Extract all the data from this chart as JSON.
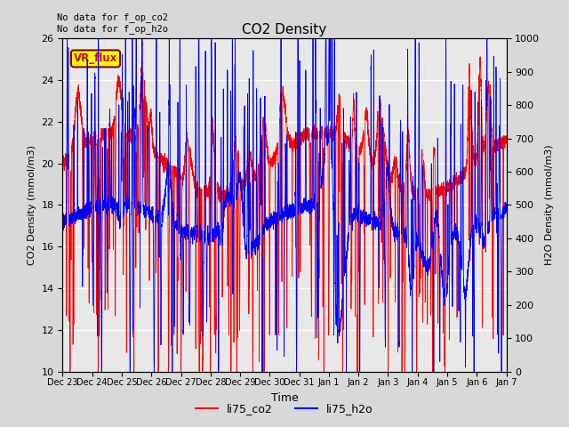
{
  "title": "CO2 Density",
  "xlabel": "Time",
  "ylabel_left": "CO2 Density (mmol/m3)",
  "ylabel_right": "H2O Density (mmol/m3)",
  "ylim_left": [
    10,
    26
  ],
  "ylim_right": [
    0,
    1000
  ],
  "yticks_left": [
    10,
    12,
    14,
    16,
    18,
    20,
    22,
    24,
    26
  ],
  "yticks_right": [
    0,
    100,
    200,
    300,
    400,
    500,
    600,
    700,
    800,
    900,
    1000
  ],
  "xtick_labels": [
    "Dec 23",
    "Dec 24",
    "Dec 25",
    "Dec 26",
    "Dec 27",
    "Dec 28",
    "Dec 29",
    "Dec 30",
    "Dec 31",
    "Jan 1",
    "Jan 2",
    "Jan 3",
    "Jan 4",
    "Jan 5",
    "Jan 6",
    "Jan 7"
  ],
  "annotation_text": "No data for f_op_co2\nNo data for f_op_h2o",
  "vr_flux_label": "VR_flux",
  "vr_flux_box_color": "#FFFF00",
  "vr_flux_text_color": "#CC0000",
  "legend_labels": [
    "li75_co2",
    "li75_h2o"
  ],
  "legend_colors": [
    "#FF0000",
    "#0000FF"
  ],
  "co2_color": "#FF0000",
  "h2o_color": "#0000FF",
  "background_color": "#D8D8D8",
  "plot_bg_color": "#E8E8E8",
  "grid_color": "#FFFFFF",
  "num_days": 15,
  "seed": 123
}
